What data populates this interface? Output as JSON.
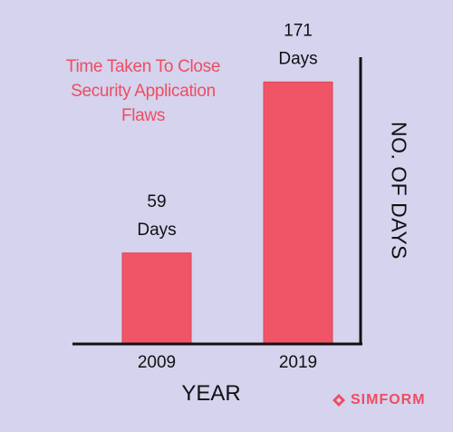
{
  "chart_data": {
    "type": "bar",
    "title": "Time Taken To Close Security Application Flaws",
    "xlabel": "YEAR",
    "ylabel": "NO. OF DAYS",
    "categories": [
      "2009",
      "2019"
    ],
    "values": [
      59,
      171
    ],
    "data_labels": [
      {
        "value": "59",
        "unit": "Days"
      },
      {
        "value": "171",
        "unit": "Days"
      }
    ],
    "ylim": [
      0,
      195
    ],
    "grid": false,
    "colors": {
      "bar": "#ef5566",
      "background": "#d5d3ee",
      "title": "#ee4d5f"
    }
  },
  "brand": {
    "name": "SIMFORM",
    "icon": "simform-logo-icon"
  }
}
